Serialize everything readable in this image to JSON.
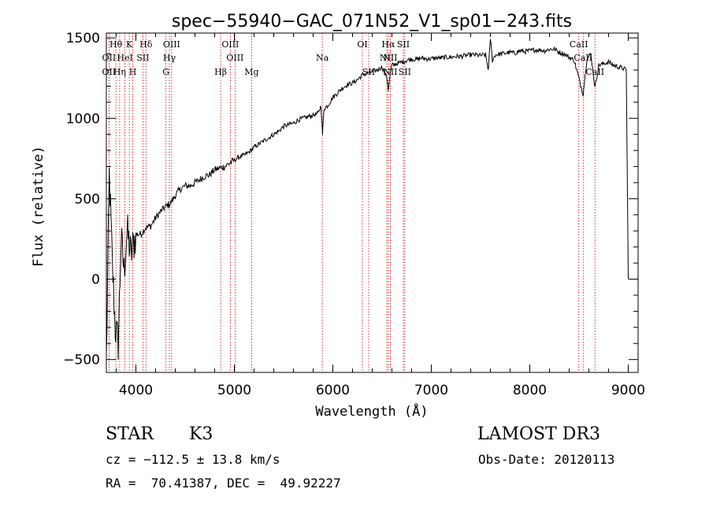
{
  "chart_data": {
    "type": "line",
    "title": "spec−55940−GAC_071N52_V1_sp01−243.fits",
    "xlabel": "Wavelength (Å)",
    "ylabel": "Flux (relative)",
    "xlim": [
      3700,
      9100
    ],
    "ylim": [
      -580,
      1530
    ],
    "x_ticks": [
      4000,
      5000,
      6000,
      7000,
      8000,
      9000
    ],
    "x_tick_labels": [
      "4000",
      "5000",
      "6000",
      "7000",
      "8000",
      "9000"
    ],
    "y_ticks": [
      -500,
      0,
      500,
      1000,
      1500
    ],
    "y_tick_labels": [
      "−500",
      "0",
      "500",
      "1000",
      "1500"
    ],
    "series": [
      {
        "name": "spectrum",
        "color": "#000000",
        "x": [
          3700,
          3730,
          3760,
          3790,
          3820,
          3850,
          3880,
          3910,
          3950,
          4000,
          4050,
          4100,
          4150,
          4200,
          4250,
          4300,
          4350,
          4400,
          4450,
          4500,
          4550,
          4600,
          4650,
          4700,
          4750,
          4800,
          4850,
          4900,
          4950,
          5000,
          5050,
          5100,
          5150,
          5200,
          5250,
          5300,
          5350,
          5400,
          5450,
          5500,
          5550,
          5600,
          5650,
          5700,
          5750,
          5800,
          5850,
          5880,
          5895,
          5910,
          5950,
          6000,
          6050,
          6100,
          6150,
          6200,
          6250,
          6300,
          6350,
          6400,
          6450,
          6500,
          6550,
          6563,
          6580,
          6600,
          6650,
          6700,
          6750,
          6800,
          6850,
          6900,
          6950,
          7000,
          7050,
          7100,
          7150,
          7200,
          7250,
          7300,
          7350,
          7400,
          7450,
          7500,
          7550,
          7580,
          7600,
          7620,
          7650,
          7700,
          7750,
          7800,
          7850,
          7900,
          7950,
          8000,
          8050,
          8100,
          8150,
          8200,
          8250,
          8300,
          8350,
          8400,
          8450,
          8498,
          8542,
          8580,
          8620,
          8662,
          8700,
          8750,
          8800,
          8850,
          8900,
          8950,
          8980,
          9000
        ],
        "y": [
          -500,
          650,
          100,
          -300,
          -400,
          250,
          50,
          300,
          150,
          280,
          280,
          320,
          330,
          380,
          420,
          450,
          470,
          520,
          560,
          580,
          580,
          600,
          620,
          640,
          650,
          680,
          690,
          700,
          720,
          740,
          760,
          770,
          790,
          820,
          840,
          860,
          880,
          900,
          920,
          950,
          960,
          970,
          990,
          1000,
          1010,
          1020,
          1030,
          1080,
          900,
          1060,
          1080,
          1130,
          1160,
          1190,
          1210,
          1220,
          1240,
          1270,
          1280,
          1290,
          1300,
          1320,
          1250,
          1180,
          1260,
          1330,
          1340,
          1350,
          1360,
          1370,
          1365,
          1375,
          1370,
          1370,
          1375,
          1375,
          1380,
          1380,
          1385,
          1385,
          1390,
          1395,
          1395,
          1390,
          1395,
          1300,
          1500,
          1360,
          1395,
          1400,
          1405,
          1410,
          1405,
          1420,
          1415,
          1420,
          1425,
          1425,
          1420,
          1430,
          1430,
          1410,
          1400,
          1380,
          1360,
          1250,
          1150,
          1370,
          1400,
          1190,
          1330,
          1340,
          1350,
          1330,
          1320,
          1310,
          1300,
          0
        ]
      }
    ],
    "lines": [
      {
        "name": "Hθ",
        "x": 3797,
        "row": 1
      },
      {
        "name": "K",
        "x": 3933,
        "row": 1
      },
      {
        "name": "Hδ",
        "x": 4102,
        "row": 1
      },
      {
        "name": "OIII",
        "x": 4363,
        "row": 1
      },
      {
        "name": "OIII",
        "x": 4959,
        "row": 1
      },
      {
        "name": "OI",
        "x": 6300,
        "row": 1
      },
      {
        "name": "Hα",
        "x": 6563,
        "row": 1
      },
      {
        "name": "SII",
        "x": 6716,
        "row": 1
      },
      {
        "name": "CaII",
        "x": 8498,
        "row": 1
      },
      {
        "name": "OII",
        "x": 3727,
        "row": 2
      },
      {
        "name": "HeI",
        "x": 3889,
        "row": 2
      },
      {
        "name": "SII",
        "x": 4072,
        "row": 2
      },
      {
        "name": "Hγ",
        "x": 4340,
        "row": 2
      },
      {
        "name": "OIII",
        "x": 5007,
        "row": 2
      },
      {
        "name": "Na",
        "x": 5893,
        "row": 2
      },
      {
        "name": "NII",
        "x": 6548,
        "row": 2
      },
      {
        "name": "NII",
        "x": 6583,
        "row": 2
      },
      {
        "name": "CaII",
        "x": 8542,
        "row": 2
      },
      {
        "name": "OII",
        "x": 3727,
        "row": 3
      },
      {
        "name": "Hη",
        "x": 3835,
        "row": 3
      },
      {
        "name": "H",
        "x": 3968,
        "row": 3
      },
      {
        "name": "G",
        "x": 4305,
        "row": 3
      },
      {
        "name": "Hβ",
        "x": 4861,
        "row": 3
      },
      {
        "name": "Mg",
        "x": 5175,
        "row": 3
      },
      {
        "name": "SII",
        "x": 6364,
        "row": 3
      },
      {
        "name": "NII",
        "x": 6583,
        "row": 3
      },
      {
        "name": "SII",
        "x": 6731,
        "row": 3
      },
      {
        "name": "CaII",
        "x": 8662,
        "row": 3
      }
    ],
    "axis_color": "#000000",
    "marker_color": "#cc0000"
  },
  "info": {
    "object_class": "STAR",
    "subclass": "K3",
    "survey": "LAMOST DR3",
    "cz": "cz = −112.5 ± 13.8 km/s",
    "obs_date": "Obs-Date: 20120113",
    "coords": "RA =  70.41387, DEC =  49.92227"
  }
}
